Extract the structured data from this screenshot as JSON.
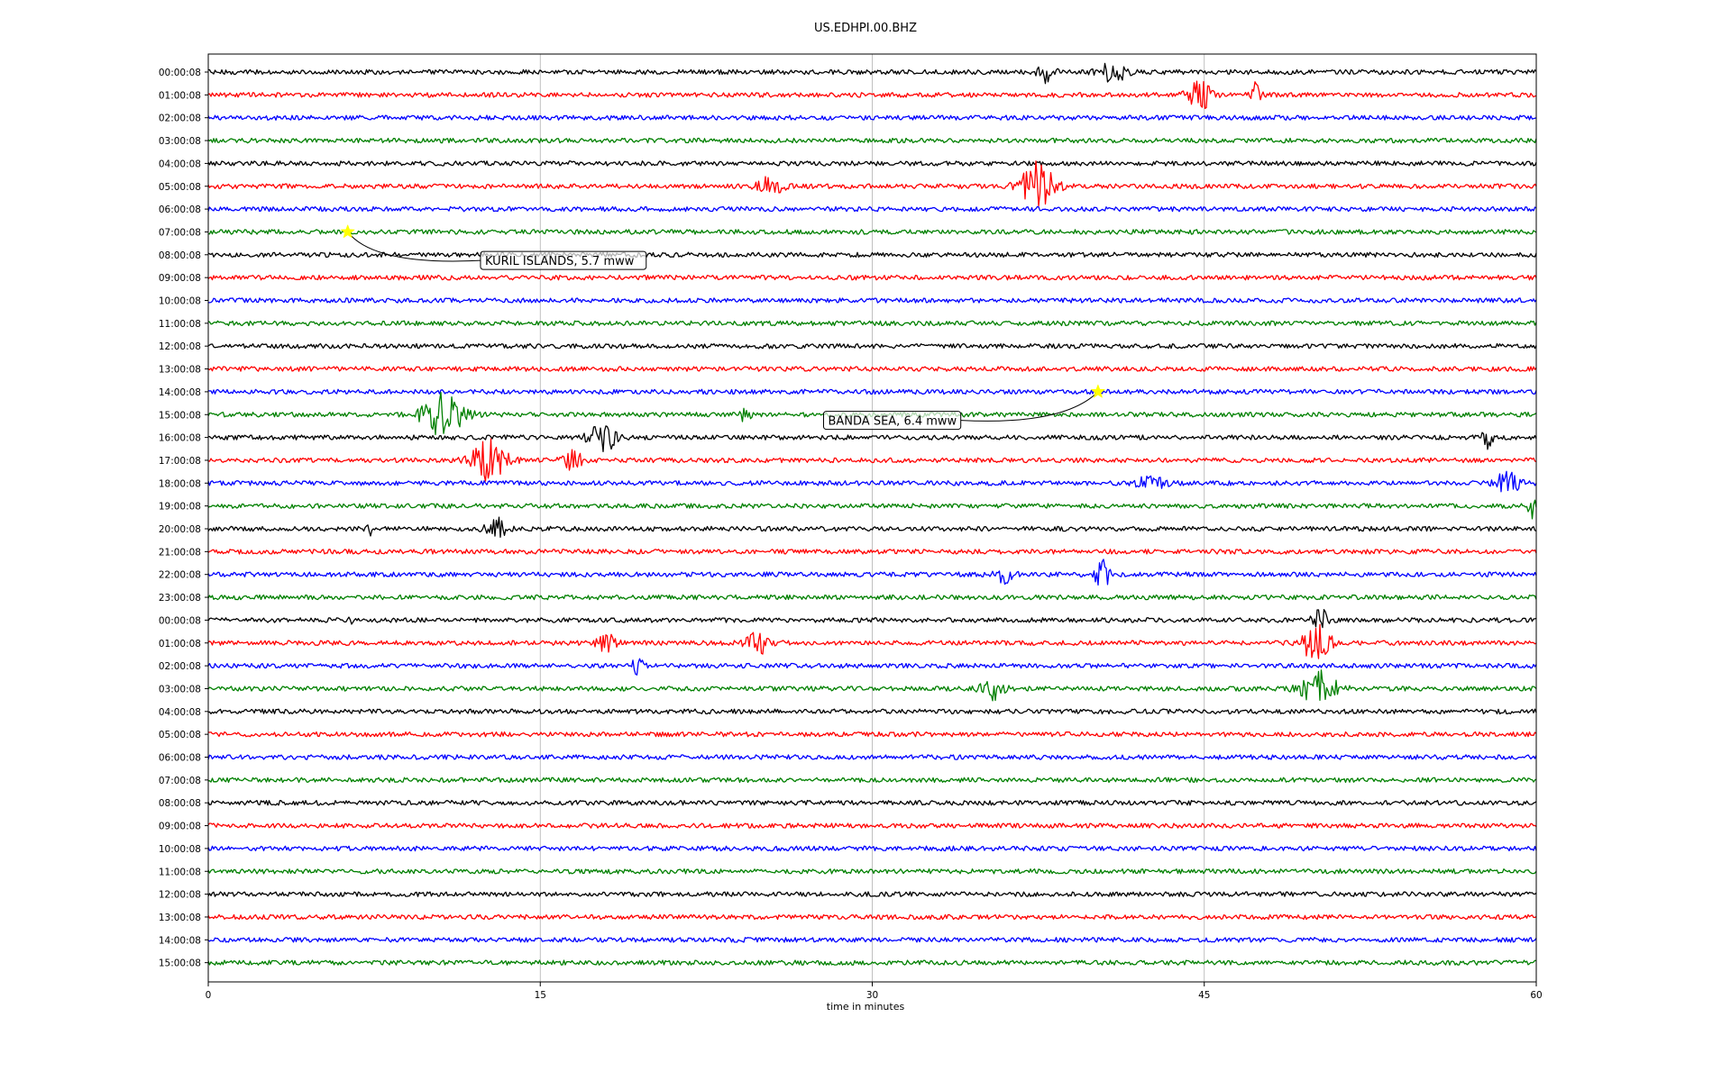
{
  "chart_data": {
    "type": "line",
    "title": "US.EDHPI.00.BHZ",
    "xlabel": "time in minutes",
    "ylabel": "",
    "xlim": [
      0,
      60
    ],
    "xticks": [
      0,
      15,
      30,
      45,
      60
    ],
    "xtick_labels": [
      "0",
      "15",
      "30",
      "45",
      "60"
    ],
    "grid_x": true,
    "trace_colors": [
      "#000000",
      "#ff0000",
      "#0000ff",
      "#008000"
    ],
    "row_labels": [
      "00:00:08",
      "01:00:08",
      "02:00:08",
      "03:00:08",
      "04:00:08",
      "05:00:08",
      "06:00:08",
      "07:00:08",
      "08:00:08",
      "09:00:08",
      "10:00:08",
      "11:00:08",
      "12:00:08",
      "13:00:08",
      "14:00:08",
      "15:00:08",
      "16:00:08",
      "17:00:08",
      "18:00:08",
      "19:00:08",
      "20:00:08",
      "21:00:08",
      "22:00:08",
      "23:00:08",
      "00:00:08",
      "01:00:08",
      "02:00:08",
      "03:00:08",
      "04:00:08",
      "05:00:08",
      "06:00:08",
      "07:00:08",
      "08:00:08",
      "09:00:08",
      "10:00:08",
      "11:00:08",
      "12:00:08",
      "13:00:08",
      "14:00:08",
      "15:00:08"
    ],
    "events": [
      {
        "row": 0,
        "x": 37.9,
        "amp": 1.2,
        "dur": 0.6
      },
      {
        "row": 0,
        "x": 40.9,
        "amp": 1.0,
        "dur": 1.2
      },
      {
        "row": 1,
        "x": 44.8,
        "amp": 1.6,
        "dur": 0.9
      },
      {
        "row": 1,
        "x": 47.3,
        "amp": 1.2,
        "dur": 0.3
      },
      {
        "row": 5,
        "x": 25.4,
        "amp": 1.0,
        "dur": 0.9
      },
      {
        "row": 5,
        "x": 37.5,
        "amp": 2.6,
        "dur": 1.3
      },
      {
        "row": 15,
        "x": 10.6,
        "amp": 2.3,
        "dur": 1.6
      },
      {
        "row": 15,
        "x": 24.2,
        "amp": 0.8,
        "dur": 0.4
      },
      {
        "row": 16,
        "x": 17.8,
        "amp": 2.0,
        "dur": 0.9
      },
      {
        "row": 16,
        "x": 57.8,
        "amp": 1.2,
        "dur": 0.3
      },
      {
        "row": 17,
        "x": 12.7,
        "amp": 2.2,
        "dur": 1.3
      },
      {
        "row": 17,
        "x": 16.4,
        "amp": 1.0,
        "dur": 0.8
      },
      {
        "row": 18,
        "x": 58.7,
        "amp": 1.1,
        "dur": 1.0
      },
      {
        "row": 18,
        "x": 42.5,
        "amp": 0.6,
        "dur": 1.3
      },
      {
        "row": 19,
        "x": 59.8,
        "amp": 2.0,
        "dur": 0.2
      },
      {
        "row": 20,
        "x": 13.0,
        "amp": 1.2,
        "dur": 0.7
      },
      {
        "row": 20,
        "x": 7.3,
        "amp": 1.0,
        "dur": 0.1
      },
      {
        "row": 22,
        "x": 40.4,
        "amp": 1.6,
        "dur": 0.5
      },
      {
        "row": 22,
        "x": 36.0,
        "amp": 0.9,
        "dur": 0.6
      },
      {
        "row": 24,
        "x": 50.2,
        "amp": 1.4,
        "dur": 0.5
      },
      {
        "row": 24,
        "x": 6.4,
        "amp": 1.3,
        "dur": 0.1
      },
      {
        "row": 25,
        "x": 50.1,
        "amp": 3.5,
        "dur": 0.9
      },
      {
        "row": 25,
        "x": 24.9,
        "amp": 1.2,
        "dur": 1.0
      },
      {
        "row": 25,
        "x": 18.0,
        "amp": 1.2,
        "dur": 0.6
      },
      {
        "row": 26,
        "x": 19.4,
        "amp": 0.8,
        "dur": 0.4
      },
      {
        "row": 27,
        "x": 50.2,
        "amp": 2.2,
        "dur": 1.3
      },
      {
        "row": 27,
        "x": 35.4,
        "amp": 1.2,
        "dur": 0.8
      }
    ],
    "annotations": [
      {
        "text": "KURIL ISLANDS, 5.7 mww",
        "row": 7,
        "x": 6.3,
        "label_row": 8.25,
        "label_x": 12.3
      },
      {
        "text": "BANDA SEA, 6.4 mww",
        "row": 14,
        "x": 40.2,
        "label_row": 15.25,
        "label_x": 27.8
      }
    ]
  }
}
